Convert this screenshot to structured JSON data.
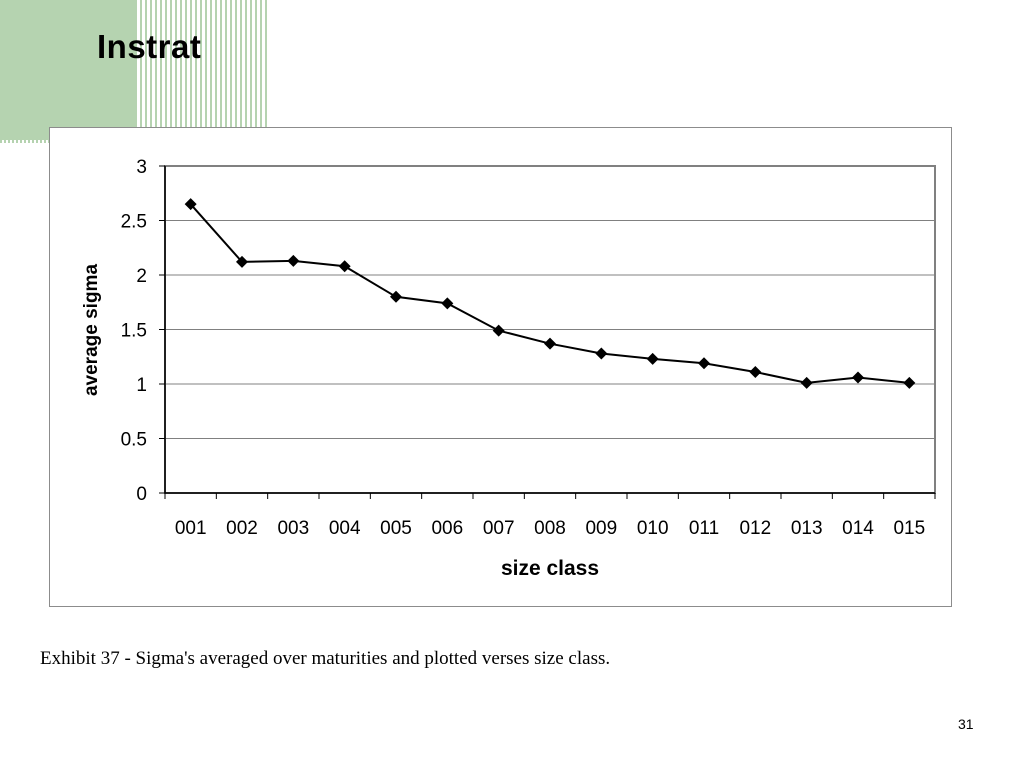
{
  "slide": {
    "title": "Instrat",
    "caption": "Exhibit 37 - Sigma's averaged over maturities and plotted verses size class.",
    "page_number": "31",
    "accent_color": "#b5d3b0"
  },
  "chart_data": {
    "type": "line",
    "title": "",
    "xlabel": "size class",
    "ylabel": "average sigma",
    "categories": [
      "001",
      "002",
      "003",
      "004",
      "005",
      "006",
      "007",
      "008",
      "009",
      "010",
      "011",
      "012",
      "013",
      "014",
      "015"
    ],
    "values": [
      2.65,
      2.12,
      2.13,
      2.08,
      1.8,
      1.74,
      1.49,
      1.37,
      1.28,
      1.23,
      1.19,
      1.11,
      1.01,
      1.06,
      1.01
    ],
    "ylim": [
      0,
      3
    ],
    "yticks": [
      "0",
      "0.5",
      "1",
      "1.5",
      "2",
      "2.5",
      "3"
    ],
    "grid": true,
    "marker": "diamond",
    "line_color": "#000000"
  }
}
